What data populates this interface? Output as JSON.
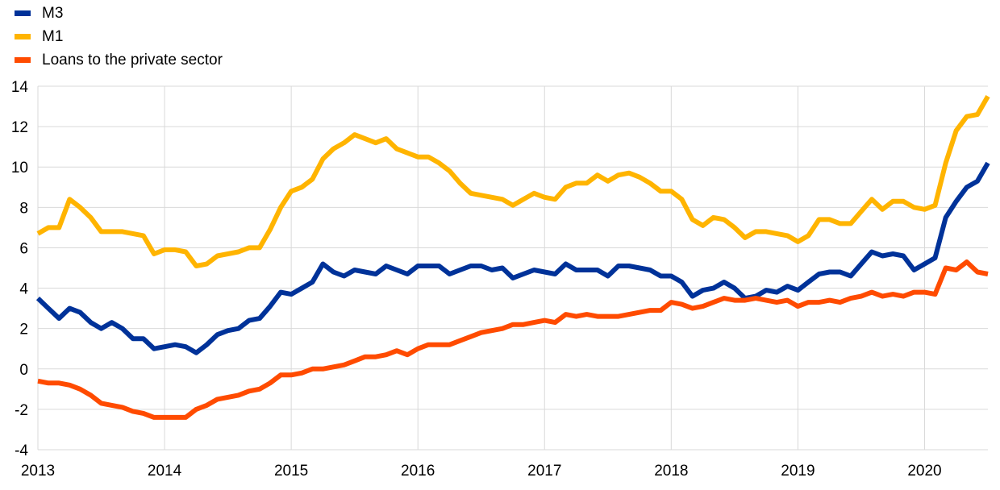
{
  "chart_data": {
    "type": "line",
    "title": "",
    "xlabel": "",
    "ylabel": "",
    "ylim": [
      -4,
      14
    ],
    "yticks": [
      -4,
      -2,
      0,
      2,
      4,
      6,
      8,
      10,
      12,
      14
    ],
    "xlim": [
      2013.0,
      2020.5
    ],
    "xtick_labels": [
      "2013",
      "2014",
      "2015",
      "2016",
      "2017",
      "2018",
      "2019",
      "2020"
    ],
    "grid": true,
    "legend_position": "top-left",
    "series": [
      {
        "name": "M3",
        "color": "#003299",
        "x": [
          2013.0,
          2013.083,
          2013.167,
          2013.25,
          2013.333,
          2013.417,
          2013.5,
          2013.583,
          2013.667,
          2013.75,
          2013.833,
          2013.917,
          2014.0,
          2014.083,
          2014.167,
          2014.25,
          2014.333,
          2014.417,
          2014.5,
          2014.583,
          2014.667,
          2014.75,
          2014.833,
          2014.917,
          2015.0,
          2015.083,
          2015.167,
          2015.25,
          2015.333,
          2015.417,
          2015.5,
          2015.583,
          2015.667,
          2015.75,
          2015.833,
          2015.917,
          2016.0,
          2016.083,
          2016.167,
          2016.25,
          2016.333,
          2016.417,
          2016.5,
          2016.583,
          2016.667,
          2016.75,
          2016.833,
          2016.917,
          2017.0,
          2017.083,
          2017.167,
          2017.25,
          2017.333,
          2017.417,
          2017.5,
          2017.583,
          2017.667,
          2017.75,
          2017.833,
          2017.917,
          2018.0,
          2018.083,
          2018.167,
          2018.25,
          2018.333,
          2018.417,
          2018.5,
          2018.583,
          2018.667,
          2018.75,
          2018.833,
          2018.917,
          2019.0,
          2019.083,
          2019.167,
          2019.25,
          2019.333,
          2019.417,
          2019.5,
          2019.583,
          2019.667,
          2019.75,
          2019.833,
          2019.917,
          2020.0,
          2020.083,
          2020.167,
          2020.25,
          2020.333,
          2020.417,
          2020.5
        ],
        "values": [
          3.5,
          3.0,
          2.5,
          3.0,
          2.8,
          2.3,
          2.0,
          2.3,
          2.0,
          1.5,
          1.5,
          1.0,
          1.1,
          1.2,
          1.1,
          0.8,
          1.2,
          1.7,
          1.9,
          2.0,
          2.4,
          2.5,
          3.1,
          3.8,
          3.7,
          4.0,
          4.3,
          5.2,
          4.8,
          4.6,
          4.9,
          4.8,
          4.7,
          5.1,
          4.9,
          4.7,
          5.1,
          5.1,
          5.1,
          4.7,
          4.9,
          5.1,
          5.1,
          4.9,
          5.0,
          4.5,
          4.7,
          4.9,
          4.8,
          4.7,
          5.2,
          4.9,
          4.9,
          4.9,
          4.6,
          5.1,
          5.1,
          5.0,
          4.9,
          4.6,
          4.6,
          4.3,
          3.6,
          3.9,
          4.0,
          4.3,
          4.0,
          3.5,
          3.6,
          3.9,
          3.8,
          4.1,
          3.9,
          4.3,
          4.7,
          4.8,
          4.8,
          4.6,
          5.2,
          5.8,
          5.6,
          5.7,
          5.6,
          4.9,
          5.2,
          5.5,
          7.5,
          8.3,
          9.0,
          9.3,
          10.2
        ]
      },
      {
        "name": "M1",
        "color": "#ffb400",
        "x": [
          2013.0,
          2013.083,
          2013.167,
          2013.25,
          2013.333,
          2013.417,
          2013.5,
          2013.583,
          2013.667,
          2013.75,
          2013.833,
          2013.917,
          2014.0,
          2014.083,
          2014.167,
          2014.25,
          2014.333,
          2014.417,
          2014.5,
          2014.583,
          2014.667,
          2014.75,
          2014.833,
          2014.917,
          2015.0,
          2015.083,
          2015.167,
          2015.25,
          2015.333,
          2015.417,
          2015.5,
          2015.583,
          2015.667,
          2015.75,
          2015.833,
          2015.917,
          2016.0,
          2016.083,
          2016.167,
          2016.25,
          2016.333,
          2016.417,
          2016.5,
          2016.583,
          2016.667,
          2016.75,
          2016.833,
          2016.917,
          2017.0,
          2017.083,
          2017.167,
          2017.25,
          2017.333,
          2017.417,
          2017.5,
          2017.583,
          2017.667,
          2017.75,
          2017.833,
          2017.917,
          2018.0,
          2018.083,
          2018.167,
          2018.25,
          2018.333,
          2018.417,
          2018.5,
          2018.583,
          2018.667,
          2018.75,
          2018.833,
          2018.917,
          2019.0,
          2019.083,
          2019.167,
          2019.25,
          2019.333,
          2019.417,
          2019.5,
          2019.583,
          2019.667,
          2019.75,
          2019.833,
          2019.917,
          2020.0,
          2020.083,
          2020.167,
          2020.25,
          2020.333,
          2020.417,
          2020.5
        ],
        "values": [
          6.7,
          7.0,
          7.0,
          8.4,
          8.0,
          7.5,
          6.8,
          6.8,
          6.8,
          6.7,
          6.6,
          5.7,
          5.9,
          5.9,
          5.8,
          5.1,
          5.2,
          5.6,
          5.7,
          5.8,
          6.0,
          6.0,
          6.9,
          8.0,
          8.8,
          9.0,
          9.4,
          10.4,
          10.9,
          11.2,
          11.6,
          11.4,
          11.2,
          11.4,
          10.9,
          10.7,
          10.5,
          10.5,
          10.2,
          9.8,
          9.2,
          8.7,
          8.6,
          8.5,
          8.4,
          8.1,
          8.4,
          8.7,
          8.5,
          8.4,
          9.0,
          9.2,
          9.2,
          9.6,
          9.3,
          9.6,
          9.7,
          9.5,
          9.2,
          8.8,
          8.8,
          8.4,
          7.4,
          7.1,
          7.5,
          7.4,
          7.0,
          6.5,
          6.8,
          6.8,
          6.7,
          6.6,
          6.3,
          6.6,
          7.4,
          7.4,
          7.2,
          7.2,
          7.8,
          8.4,
          7.9,
          8.3,
          8.3,
          8.0,
          7.9,
          8.1,
          10.2,
          11.8,
          12.5,
          12.6,
          13.5
        ]
      },
      {
        "name": "Loans to the private sector",
        "color": "#ff4b00",
        "x": [
          2013.0,
          2013.083,
          2013.167,
          2013.25,
          2013.333,
          2013.417,
          2013.5,
          2013.583,
          2013.667,
          2013.75,
          2013.833,
          2013.917,
          2014.0,
          2014.083,
          2014.167,
          2014.25,
          2014.333,
          2014.417,
          2014.5,
          2014.583,
          2014.667,
          2014.75,
          2014.833,
          2014.917,
          2015.0,
          2015.083,
          2015.167,
          2015.25,
          2015.333,
          2015.417,
          2015.5,
          2015.583,
          2015.667,
          2015.75,
          2015.833,
          2015.917,
          2016.0,
          2016.083,
          2016.167,
          2016.25,
          2016.333,
          2016.417,
          2016.5,
          2016.583,
          2016.667,
          2016.75,
          2016.833,
          2016.917,
          2017.0,
          2017.083,
          2017.167,
          2017.25,
          2017.333,
          2017.417,
          2017.5,
          2017.583,
          2017.667,
          2017.75,
          2017.833,
          2017.917,
          2018.0,
          2018.083,
          2018.167,
          2018.25,
          2018.333,
          2018.417,
          2018.5,
          2018.583,
          2018.667,
          2018.75,
          2018.833,
          2018.917,
          2019.0,
          2019.083,
          2019.167,
          2019.25,
          2019.333,
          2019.417,
          2019.5,
          2019.583,
          2019.667,
          2019.75,
          2019.833,
          2019.917,
          2020.0,
          2020.083,
          2020.167,
          2020.25,
          2020.333,
          2020.417,
          2020.5
        ],
        "values": [
          -0.6,
          -0.7,
          -0.7,
          -0.8,
          -1.0,
          -1.3,
          -1.7,
          -1.8,
          -1.9,
          -2.1,
          -2.2,
          -2.4,
          -2.4,
          -2.4,
          -2.4,
          -2.0,
          -1.8,
          -1.5,
          -1.4,
          -1.3,
          -1.1,
          -1.0,
          -0.7,
          -0.3,
          -0.3,
          -0.2,
          0.0,
          0.0,
          0.1,
          0.2,
          0.4,
          0.6,
          0.6,
          0.7,
          0.9,
          0.7,
          1.0,
          1.2,
          1.2,
          1.2,
          1.4,
          1.6,
          1.8,
          1.9,
          2.0,
          2.2,
          2.2,
          2.3,
          2.4,
          2.3,
          2.7,
          2.6,
          2.7,
          2.6,
          2.6,
          2.6,
          2.7,
          2.8,
          2.9,
          2.9,
          3.3,
          3.2,
          3.0,
          3.1,
          3.3,
          3.5,
          3.4,
          3.4,
          3.5,
          3.4,
          3.3,
          3.4,
          3.1,
          3.3,
          3.3,
          3.4,
          3.3,
          3.5,
          3.6,
          3.8,
          3.6,
          3.7,
          3.6,
          3.8,
          3.8,
          3.7,
          5.0,
          4.9,
          5.3,
          4.8,
          4.7
        ]
      }
    ]
  }
}
